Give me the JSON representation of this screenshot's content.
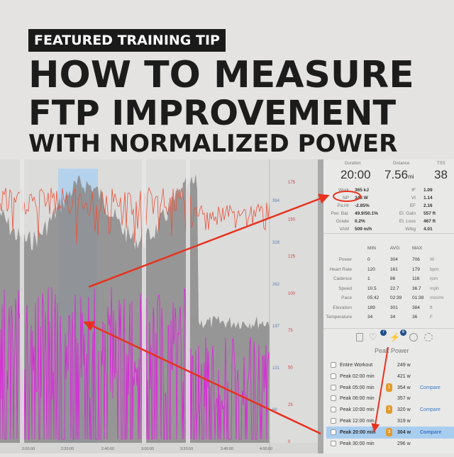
{
  "banner": {
    "tag": "FEATURED TRAINING TIP",
    "line1": "HOW TO MEASURE",
    "line2": "FTP IMPROVEMENT",
    "line3": "WITH NORMALIZED POWER"
  },
  "summary": {
    "duration_label": "Duration",
    "duration": "20:00",
    "distance_label": "Distance",
    "distance": "7.56",
    "distance_unit": "mi",
    "tss_label": "TSS",
    "tss": "38",
    "left": [
      {
        "k": "Work",
        "v": "365 kJ"
      },
      {
        "k": "NP",
        "v": "348 W"
      },
      {
        "k": "Pa:Hr",
        "v": "-2.85%"
      },
      {
        "k": "Pwr. Bal.",
        "v": "49.9/50.1%"
      },
      {
        "k": "Grade",
        "v": "0.2%"
      },
      {
        "k": "VAM",
        "v": "509 m/h"
      }
    ],
    "right": [
      {
        "k": "IF",
        "v": "1.09"
      },
      {
        "k": "VI",
        "v": "1.14"
      },
      {
        "k": "EF",
        "v": "2.16"
      },
      {
        "k": "El. Gain",
        "v": "557 ft"
      },
      {
        "k": "El. Loss",
        "v": "467 ft"
      },
      {
        "k": "W/kg",
        "v": "4.01"
      }
    ]
  },
  "stats": {
    "headers": [
      "MIN",
      "AVG",
      "MAX"
    ],
    "rows": [
      [
        "Power",
        "0",
        "304",
        "706",
        "W"
      ],
      [
        "Heart Rate",
        "120",
        "161",
        "179",
        "bpm"
      ],
      [
        "Cadence",
        "1",
        "86",
        "116",
        "rpm"
      ],
      [
        "Speed",
        "10.5",
        "22.7",
        "36.7",
        "mph"
      ],
      [
        "Pace",
        "05:42",
        "02:39",
        "01:38",
        "min/mi"
      ],
      [
        "Elevation",
        "189",
        "301",
        "384",
        "ft"
      ],
      [
        "Temperature",
        "34",
        "34",
        "36",
        "F"
      ]
    ]
  },
  "tabs": {
    "badge1": "7",
    "badge2": "6",
    "title": "Peak Power"
  },
  "peaks": [
    {
      "label": "Entire Workout",
      "value": "249 w",
      "medal": "",
      "compare": ""
    },
    {
      "label": "Peak 02:00 min",
      "value": "421 w",
      "medal": "",
      "compare": ""
    },
    {
      "label": "Peak 05:00 min",
      "value": "354 w",
      "medal": "1",
      "compare": "Compare"
    },
    {
      "label": "Peak 06:00 min",
      "value": "357 w",
      "medal": "",
      "compare": ""
    },
    {
      "label": "Peak 10:00 min",
      "value": "320 w",
      "medal": "3",
      "compare": "Compare"
    },
    {
      "label": "Peak 12:00 min",
      "value": "319 w",
      "medal": "",
      "compare": ""
    },
    {
      "label": "Peak 20:00 min",
      "value": "304 w",
      "medal": "3",
      "compare": "Compare",
      "selected": true
    },
    {
      "label": "Peak 30:00 min",
      "value": "296 w",
      "medal": "",
      "compare": ""
    }
  ],
  "chart_data": {
    "type": "line",
    "x_ticks": [
      "2:00:00",
      "2:20:00",
      "2:40:00",
      "3:00:00",
      "3:20:00",
      "3:40:00",
      "4:00:00"
    ],
    "y_left_ticks": [
      "394",
      "328",
      "262",
      "197",
      "131",
      "66"
    ],
    "y_right_ticks": [
      "175",
      "150",
      "125",
      "100",
      "75",
      "50",
      "25",
      "0"
    ],
    "colors": {
      "power": "#e020e0",
      "heart_rate": "#e8543c",
      "elevation": "#8a8a8a",
      "selection": "#b4d2ec",
      "arrow": "#e8321e"
    }
  }
}
